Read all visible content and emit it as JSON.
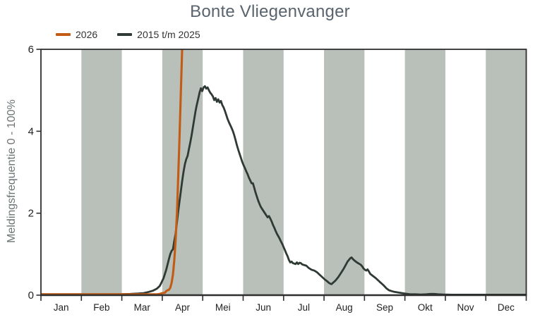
{
  "title": "Bonte Vliegenvanger",
  "y_axis": {
    "label": "Meldingsfrequentie 0 - 100%",
    "ticks": [
      0,
      2,
      4,
      6
    ]
  },
  "x_axis": {
    "months": [
      "Jan",
      "Feb",
      "Mar",
      "Apr",
      "Mei",
      "Jun",
      "Jul",
      "Aug",
      "Sep",
      "Okt",
      "Nov",
      "Dec"
    ]
  },
  "legend": [
    {
      "label": "2026",
      "color": "#c25c15"
    },
    {
      "label": "2015 t/m 2025",
      "color": "#2e3a33"
    }
  ],
  "colors": {
    "band": "#b9bfb9",
    "axis": "#2f2f2f",
    "tick_text": "#222222",
    "background": "#ffffff"
  },
  "chart_data": {
    "type": "line",
    "x_unit": "day_of_year",
    "x_range": [
      1,
      365
    ],
    "ylim": [
      0,
      6
    ],
    "grid": false,
    "legend_position": "top-left",
    "banded_month_indices": [
      1,
      3,
      5,
      7,
      9,
      11
    ],
    "series": [
      {
        "name": "2026",
        "color": "#c25c15",
        "width": 3.1,
        "points": [
          [
            1,
            0.02
          ],
          [
            20,
            0.02
          ],
          [
            40,
            0.02
          ],
          [
            60,
            0.02
          ],
          [
            80,
            0.02
          ],
          [
            88,
            0.02
          ],
          [
            90,
            0.03
          ],
          [
            92,
            0.05
          ],
          [
            94,
            0.06
          ],
          [
            95,
            0.1
          ],
          [
            96,
            0.12
          ],
          [
            97,
            0.13
          ],
          [
            98,
            0.18
          ],
          [
            99,
            0.3
          ],
          [
            100,
            0.5
          ],
          [
            101,
            0.85
          ],
          [
            102,
            1.35
          ],
          [
            103,
            2.0
          ],
          [
            104,
            2.9
          ],
          [
            105,
            3.9
          ],
          [
            106,
            5.0
          ],
          [
            107,
            6.1
          ],
          [
            107.5,
            6.6
          ]
        ]
      },
      {
        "name": "2015 t/m 2025",
        "color": "#2e3a33",
        "width": 2.8,
        "points": [
          [
            1,
            0.02
          ],
          [
            20,
            0.02
          ],
          [
            40,
            0.02
          ],
          [
            59,
            0.02
          ],
          [
            68,
            0.03
          ],
          [
            74,
            0.04
          ],
          [
            78,
            0.05
          ],
          [
            82,
            0.08
          ],
          [
            85,
            0.11
          ],
          [
            88,
            0.16
          ],
          [
            90,
            0.22
          ],
          [
            91,
            0.28
          ],
          [
            93,
            0.42
          ],
          [
            95,
            0.62
          ],
          [
            97,
            0.88
          ],
          [
            98,
            1.0
          ],
          [
            99,
            1.08
          ],
          [
            100,
            1.12
          ],
          [
            101,
            1.32
          ],
          [
            102,
            1.5
          ],
          [
            103,
            1.78
          ],
          [
            104,
            2.05
          ],
          [
            105,
            2.3
          ],
          [
            106,
            2.55
          ],
          [
            107,
            2.8
          ],
          [
            108,
            3.02
          ],
          [
            109,
            3.2
          ],
          [
            110,
            3.32
          ],
          [
            111,
            3.4
          ],
          [
            112,
            3.56
          ],
          [
            113,
            3.72
          ],
          [
            114,
            3.9
          ],
          [
            115,
            4.1
          ],
          [
            116,
            4.3
          ],
          [
            117,
            4.5
          ],
          [
            118,
            4.66
          ],
          [
            119,
            4.8
          ],
          [
            120,
            4.95
          ],
          [
            121,
            5.05
          ],
          [
            122,
            4.98
          ],
          [
            123,
            5.07
          ],
          [
            124,
            5.1
          ],
          [
            125,
            5.04
          ],
          [
            126,
            5.07
          ],
          [
            127,
            5.0
          ],
          [
            128,
            4.94
          ],
          [
            129,
            4.9
          ],
          [
            130,
            4.85
          ],
          [
            131,
            4.76
          ],
          [
            132,
            4.81
          ],
          [
            133,
            4.72
          ],
          [
            134,
            4.78
          ],
          [
            135,
            4.7
          ],
          [
            136,
            4.74
          ],
          [
            137,
            4.64
          ],
          [
            138,
            4.58
          ],
          [
            139,
            4.5
          ],
          [
            140,
            4.4
          ],
          [
            141,
            4.3
          ],
          [
            142,
            4.22
          ],
          [
            143,
            4.15
          ],
          [
            144,
            4.08
          ],
          [
            145,
            4.0
          ],
          [
            146,
            3.9
          ],
          [
            147,
            3.78
          ],
          [
            148,
            3.66
          ],
          [
            149,
            3.55
          ],
          [
            150,
            3.45
          ],
          [
            151,
            3.35
          ],
          [
            152,
            3.25
          ],
          [
            153,
            3.17
          ],
          [
            154,
            3.1
          ],
          [
            155,
            3.02
          ],
          [
            156,
            2.95
          ],
          [
            157,
            2.87
          ],
          [
            158,
            2.8
          ],
          [
            159,
            2.73
          ],
          [
            160,
            2.73
          ],
          [
            161,
            2.62
          ],
          [
            162,
            2.5
          ],
          [
            163,
            2.4
          ],
          [
            164,
            2.3
          ],
          [
            165,
            2.22
          ],
          [
            166,
            2.15
          ],
          [
            167,
            2.1
          ],
          [
            168,
            2.05
          ],
          [
            169,
            2.0
          ],
          [
            170,
            1.95
          ],
          [
            171,
            1.9
          ],
          [
            172,
            1.93
          ],
          [
            173,
            1.87
          ],
          [
            174,
            1.8
          ],
          [
            175,
            1.72
          ],
          [
            176,
            1.65
          ],
          [
            177,
            1.57
          ],
          [
            178,
            1.5
          ],
          [
            179,
            1.44
          ],
          [
            180,
            1.38
          ],
          [
            181,
            1.31
          ],
          [
            182,
            1.25
          ],
          [
            183,
            1.17
          ],
          [
            184,
            1.1
          ],
          [
            185,
            1.02
          ],
          [
            186,
            0.95
          ],
          [
            187,
            0.86
          ],
          [
            188,
            0.8
          ],
          [
            189,
            0.82
          ],
          [
            190,
            0.78
          ],
          [
            191,
            0.77
          ],
          [
            192,
            0.76
          ],
          [
            193,
            0.8
          ],
          [
            194,
            0.76
          ],
          [
            195,
            0.79
          ],
          [
            196,
            0.78
          ],
          [
            197,
            0.75
          ],
          [
            198,
            0.74
          ],
          [
            200,
            0.72
          ],
          [
            202,
            0.66
          ],
          [
            204,
            0.62
          ],
          [
            206,
            0.6
          ],
          [
            208,
            0.56
          ],
          [
            210,
            0.5
          ],
          [
            212,
            0.44
          ],
          [
            214,
            0.38
          ],
          [
            216,
            0.33
          ],
          [
            217,
            0.3
          ],
          [
            218,
            0.28
          ],
          [
            219,
            0.27
          ],
          [
            220,
            0.3
          ],
          [
            222,
            0.36
          ],
          [
            224,
            0.44
          ],
          [
            226,
            0.54
          ],
          [
            228,
            0.64
          ],
          [
            230,
            0.76
          ],
          [
            231,
            0.82
          ],
          [
            232,
            0.86
          ],
          [
            233,
            0.9
          ],
          [
            234,
            0.92
          ],
          [
            235,
            0.88
          ],
          [
            236,
            0.85
          ],
          [
            238,
            0.8
          ],
          [
            240,
            0.76
          ],
          [
            241,
            0.74
          ],
          [
            242,
            0.7
          ],
          [
            243,
            0.65
          ],
          [
            244,
            0.62
          ],
          [
            245,
            0.6
          ],
          [
            246,
            0.63
          ],
          [
            247,
            0.58
          ],
          [
            248,
            0.52
          ],
          [
            250,
            0.47
          ],
          [
            252,
            0.42
          ],
          [
            254,
            0.36
          ],
          [
            256,
            0.3
          ],
          [
            258,
            0.24
          ],
          [
            260,
            0.17
          ],
          [
            262,
            0.12
          ],
          [
            264,
            0.1
          ],
          [
            266,
            0.08
          ],
          [
            268,
            0.07
          ],
          [
            270,
            0.06
          ],
          [
            272,
            0.05
          ],
          [
            274,
            0.04
          ],
          [
            276,
            0.03
          ],
          [
            278,
            0.02
          ],
          [
            282,
            0.02
          ],
          [
            286,
            0.015
          ],
          [
            290,
            0.02
          ],
          [
            293,
            0.03
          ],
          [
            296,
            0.03
          ],
          [
            299,
            0.02
          ],
          [
            303,
            0.015
          ],
          [
            310,
            0.01
          ],
          [
            325,
            0.01
          ],
          [
            340,
            0.01
          ],
          [
            355,
            0.01
          ],
          [
            365,
            0.01
          ]
        ]
      }
    ]
  }
}
